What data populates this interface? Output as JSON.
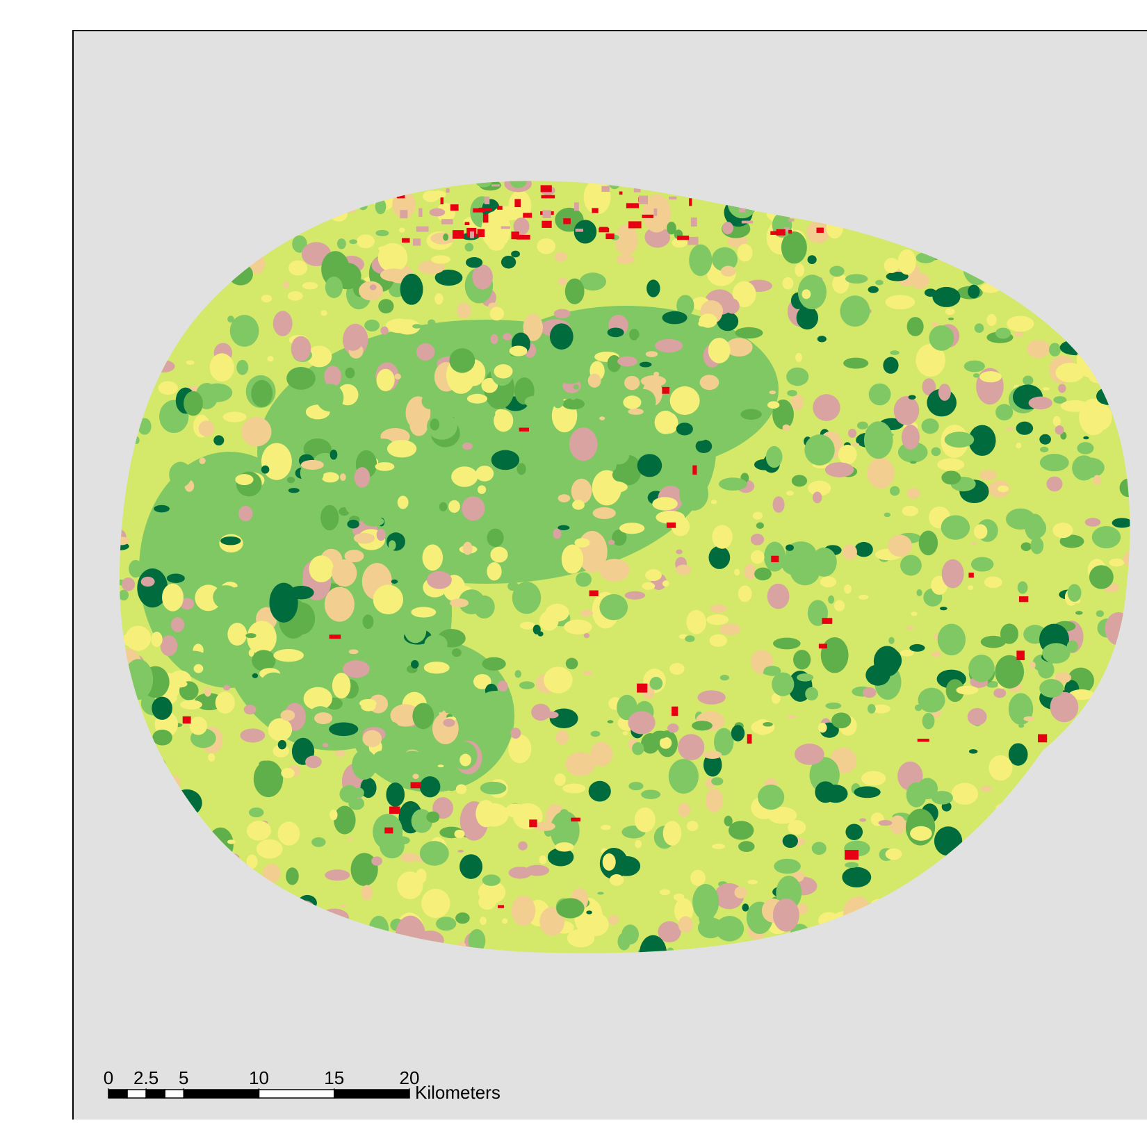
{
  "scale_bar": {
    "ticks": [
      0,
      2.5,
      5,
      10,
      15,
      20
    ],
    "unit": "Kilometers"
  }
}
